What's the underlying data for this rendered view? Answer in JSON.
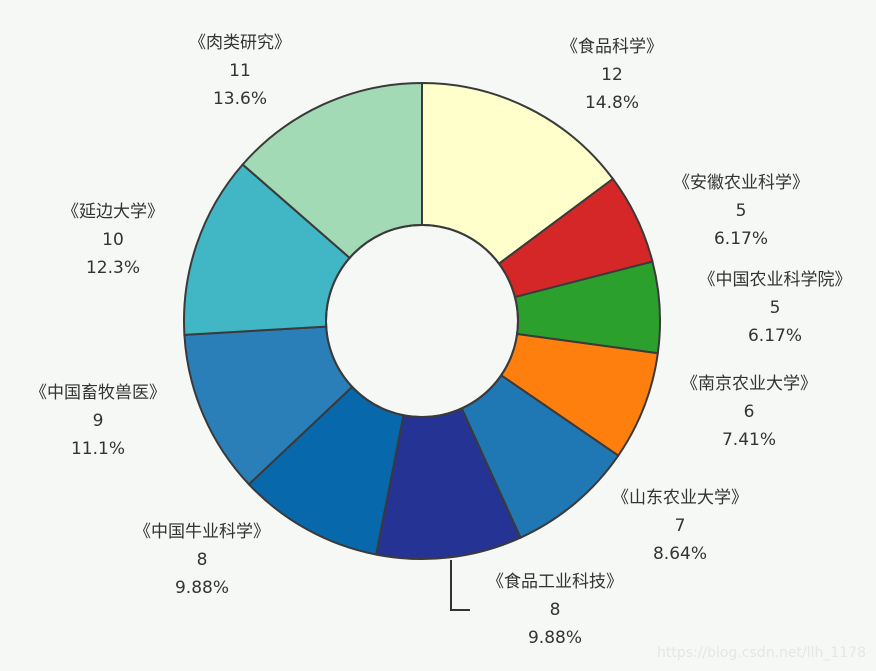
{
  "chart_data": {
    "type": "pie",
    "donut": true,
    "categories": [
      "《食品科学》",
      "《安徽农业科学》",
      "《中国农业科学院》",
      "《南京农业大学》",
      "《山东农业大学》",
      "《食品工业科技》",
      "《中国牛业科学》",
      "《中国畜牧兽医》",
      "《延边大学》",
      "《肉类研究》"
    ],
    "values": [
      12,
      5,
      5,
      6,
      7,
      8,
      8,
      9,
      10,
      11
    ],
    "percent_labels": [
      "14.8%",
      "6.17%",
      "6.17%",
      "7.41%",
      "8.64%",
      "9.88%",
      "9.88%",
      "11.1%",
      "12.3%",
      "13.6%"
    ],
    "colors": [
      "#ffffcc",
      "#d62728",
      "#2ca02c",
      "#ff7f0e",
      "#1f77b4",
      "#253494",
      "#0868ac",
      "#2b7fb8",
      "#41b6c4",
      "#a1dab4"
    ],
    "label_color": "#333333",
    "start": "12 o'clock, clockwise"
  },
  "watermark": "https://blog.csdn.net/llh_1178"
}
